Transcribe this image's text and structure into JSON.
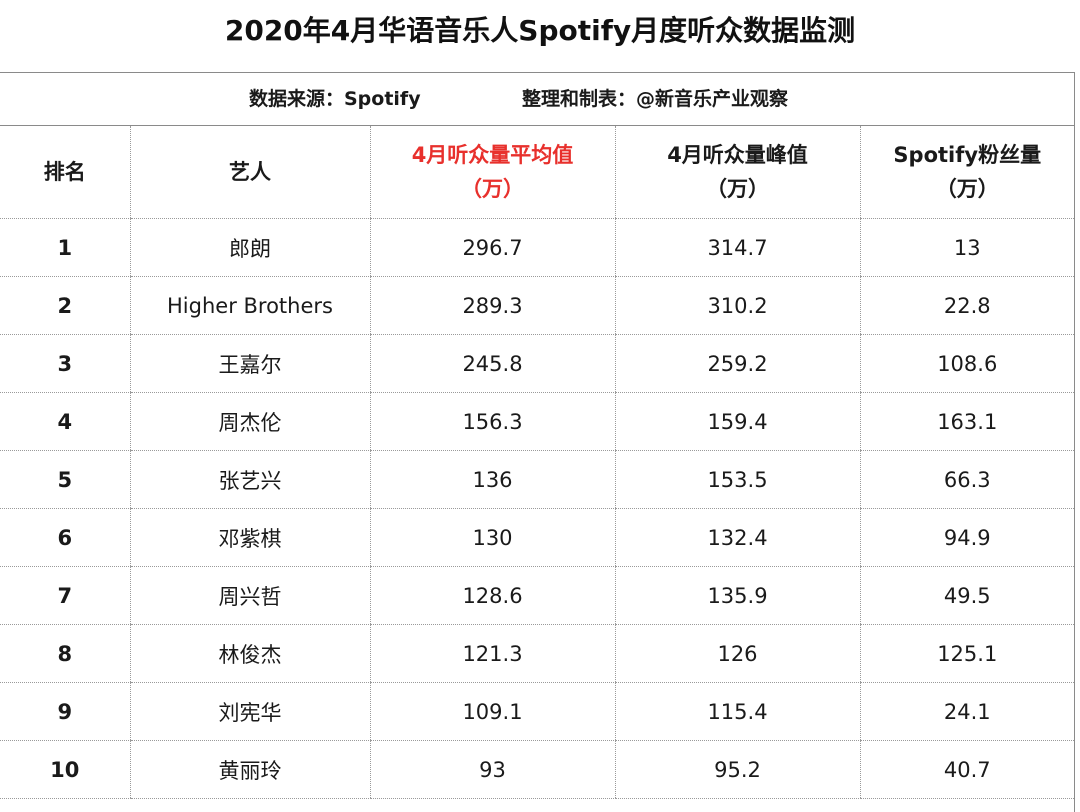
{
  "title": "2020年4月华语音乐人Spotify月度听众数据监测",
  "source": {
    "data_source": "数据来源：Spotify",
    "compiled_by": "整理和制表：@新音乐产业观察"
  },
  "columns": {
    "rank": "排名",
    "artist": "艺人",
    "avg": {
      "line1": "4月听众量平均值",
      "line2": "（万）"
    },
    "peak": {
      "line1": "4月听众量峰值",
      "line2": "（万）"
    },
    "followers": {
      "line1": "Spotify粉丝量",
      "line2": "（万）"
    }
  },
  "highlight_color": "#e8302c",
  "rows": [
    {
      "rank": "1",
      "artist": "郎朗",
      "avg": "296.7",
      "peak": "314.7",
      "followers": "13"
    },
    {
      "rank": "2",
      "artist": "Higher Brothers",
      "avg": "289.3",
      "peak": "310.2",
      "followers": "22.8"
    },
    {
      "rank": "3",
      "artist": "王嘉尔",
      "avg": "245.8",
      "peak": "259.2",
      "followers": "108.6"
    },
    {
      "rank": "4",
      "artist": "周杰伦",
      "avg": "156.3",
      "peak": "159.4",
      "followers": "163.1"
    },
    {
      "rank": "5",
      "artist": "张艺兴",
      "avg": "136",
      "peak": "153.5",
      "followers": "66.3"
    },
    {
      "rank": "6",
      "artist": "邓紫棋",
      "avg": "130",
      "peak": "132.4",
      "followers": "94.9"
    },
    {
      "rank": "7",
      "artist": "周兴哲",
      "avg": "128.6",
      "peak": "135.9",
      "followers": "49.5"
    },
    {
      "rank": "8",
      "artist": "林俊杰",
      "avg": "121.3",
      "peak": "126",
      "followers": "125.1"
    },
    {
      "rank": "9",
      "artist": "刘宪华",
      "avg": "109.1",
      "peak": "115.4",
      "followers": "24.1"
    },
    {
      "rank": "10",
      "artist": "黄丽玲",
      "avg": "93",
      "peak": "95.2",
      "followers": "40.7"
    }
  ]
}
